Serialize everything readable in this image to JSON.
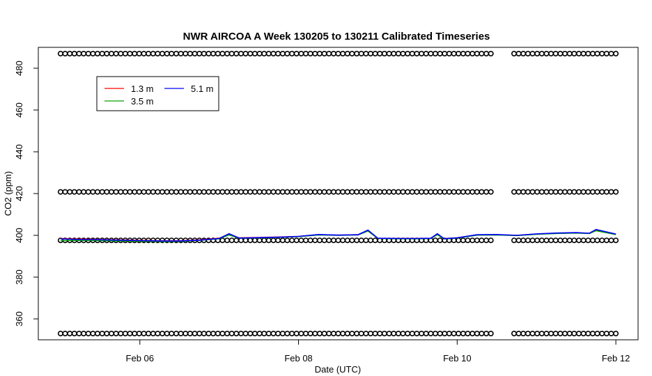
{
  "chart_data": {
    "type": "line",
    "title": "NWR AIRCOA A  Week 130205 to 130211  Calibrated Timeseries",
    "xlabel": "Date (UTC)",
    "ylabel": "CO2 (ppm)",
    "x_ticks": [
      {
        "date": "2013-02-06",
        "label": "Feb 06"
      },
      {
        "date": "2013-02-08",
        "label": "Feb 08"
      },
      {
        "date": "2013-02-10",
        "label": "Feb 10"
      },
      {
        "date": "2013-02-12",
        "label": "Feb 12"
      }
    ],
    "y_ticks": [
      360,
      380,
      400,
      420,
      440,
      460,
      480
    ],
    "xlim": [
      "2013-02-05T00:00",
      "2013-02-12T00:00"
    ],
    "ylim": [
      350,
      490
    ],
    "grid": false,
    "legend_position": "top-left",
    "series": [
      {
        "name": "1.3 m",
        "color": "#ff0000",
        "x": [
          "2013-02-05T00:00",
          "2013-02-05T06:00",
          "2013-02-05T12:00",
          "2013-02-05T18:00",
          "2013-02-06T00:00",
          "2013-02-06T06:00",
          "2013-02-06T12:00",
          "2013-02-06T18:00",
          "2013-02-07T00:00",
          "2013-02-07T03:00",
          "2013-02-07T06:00",
          "2013-02-07T12:00",
          "2013-02-07T18:00",
          "2013-02-08T00:00",
          "2013-02-08T06:00",
          "2013-02-08T12:00",
          "2013-02-08T18:00",
          "2013-02-08T21:00",
          "2013-02-09T00:00",
          "2013-02-09T06:00",
          "2013-02-09T12:00",
          "2013-02-09T16:00",
          "2013-02-09T18:00",
          "2013-02-09T20:00",
          "2013-02-10T00:00",
          "2013-02-10T06:00",
          "2013-02-10T12:00",
          "2013-02-10T18:00",
          "2013-02-11T00:00",
          "2013-02-11T06:00",
          "2013-02-11T12:00",
          "2013-02-11T16:00",
          "2013-02-11T18:00",
          "2013-02-12T00:00"
        ],
        "y": [
          398.5,
          398.2,
          398.0,
          397.8,
          397.6,
          397.4,
          397.4,
          397.8,
          398.6,
          400.5,
          398.8,
          399.0,
          399.2,
          399.5,
          400.3,
          400.1,
          400.3,
          402.3,
          398.6,
          398.5,
          398.5,
          398.6,
          400.5,
          398.4,
          398.8,
          400.2,
          400.3,
          400.0,
          400.6,
          401.0,
          401.2,
          401.0,
          402.4,
          400.5
        ]
      },
      {
        "name": "3.5 m",
        "color": "#00a000",
        "x": [
          "2013-02-05T00:00",
          "2013-02-05T06:00",
          "2013-02-05T12:00",
          "2013-02-05T18:00",
          "2013-02-06T00:00",
          "2013-02-06T06:00",
          "2013-02-06T12:00",
          "2013-02-06T18:00",
          "2013-02-07T00:00",
          "2013-02-07T03:00",
          "2013-02-07T06:00",
          "2013-02-07T12:00",
          "2013-02-07T18:00",
          "2013-02-08T00:00",
          "2013-02-08T06:00",
          "2013-02-08T12:00",
          "2013-02-08T18:00",
          "2013-02-08T21:00",
          "2013-02-09T00:00",
          "2013-02-09T06:00",
          "2013-02-09T12:00",
          "2013-02-09T16:00",
          "2013-02-09T18:00",
          "2013-02-09T20:00",
          "2013-02-10T00:00",
          "2013-02-10T06:00",
          "2013-02-10T12:00",
          "2013-02-10T18:00",
          "2013-02-11T00:00",
          "2013-02-11T06:00",
          "2013-02-11T12:00",
          "2013-02-11T16:00",
          "2013-02-11T18:00",
          "2013-02-12T00:00"
        ],
        "y": [
          397.5,
          397.6,
          397.5,
          397.3,
          397.2,
          397.0,
          397.1,
          397.6,
          398.4,
          400.2,
          398.6,
          398.8,
          399.0,
          399.4,
          400.2,
          400.0,
          400.2,
          402.1,
          398.5,
          398.4,
          398.4,
          398.5,
          400.3,
          398.3,
          398.7,
          400.1,
          400.2,
          399.9,
          400.5,
          400.9,
          401.1,
          400.9,
          402.2,
          400.4
        ]
      },
      {
        "name": "5.1 m",
        "color": "#0000ff",
        "x": [
          "2013-02-05T00:00",
          "2013-02-05T06:00",
          "2013-02-05T12:00",
          "2013-02-05T18:00",
          "2013-02-06T00:00",
          "2013-02-06T06:00",
          "2013-02-06T12:00",
          "2013-02-06T18:00",
          "2013-02-07T00:00",
          "2013-02-07T03:00",
          "2013-02-07T06:00",
          "2013-02-07T12:00",
          "2013-02-07T18:00",
          "2013-02-08T00:00",
          "2013-02-08T06:00",
          "2013-02-08T12:00",
          "2013-02-08T18:00",
          "2013-02-08T21:00",
          "2013-02-09T00:00",
          "2013-02-09T06:00",
          "2013-02-09T12:00",
          "2013-02-09T16:00",
          "2013-02-09T18:00",
          "2013-02-09T20:00",
          "2013-02-10T00:00",
          "2013-02-10T06:00",
          "2013-02-10T12:00",
          "2013-02-10T18:00",
          "2013-02-11T00:00",
          "2013-02-11T06:00",
          "2013-02-11T12:00",
          "2013-02-11T16:00",
          "2013-02-11T18:00",
          "2013-02-12T00:00"
        ],
        "y": [
          398.3,
          398.0,
          397.9,
          397.7,
          397.5,
          397.3,
          397.3,
          397.7,
          398.5,
          400.8,
          398.7,
          398.9,
          399.1,
          399.5,
          400.4,
          400.1,
          400.3,
          402.5,
          398.6,
          398.5,
          398.5,
          398.6,
          400.8,
          398.4,
          398.8,
          400.3,
          400.4,
          400.0,
          400.7,
          401.1,
          401.3,
          401.0,
          402.8,
          400.6
        ]
      }
    ],
    "reference_markers": [
      {
        "y": 487.0,
        "color": "#000000",
        "marker": "open-circle",
        "start": "2013-02-05T00:00",
        "end": "2013-02-12T00:00",
        "gap": [
          "2013-02-10T11:00",
          "2013-02-10T16:00"
        ]
      },
      {
        "y": 420.8,
        "color": "#000000",
        "marker": "open-circle",
        "start": "2013-02-05T00:00",
        "end": "2013-02-12T00:00",
        "gap": [
          "2013-02-10T11:00",
          "2013-02-10T16:00"
        ]
      },
      {
        "y": 397.6,
        "color": "#000000",
        "marker": "open-circle",
        "start": "2013-02-05T00:00",
        "end": "2013-02-12T00:00",
        "gap": [
          "2013-02-10T11:00",
          "2013-02-10T16:00"
        ]
      },
      {
        "y": 353.0,
        "color": "#000000",
        "marker": "open-circle",
        "start": "2013-02-05T00:00",
        "end": "2013-02-12T00:00",
        "gap": [
          "2013-02-10T11:00",
          "2013-02-10T16:00"
        ]
      }
    ]
  }
}
